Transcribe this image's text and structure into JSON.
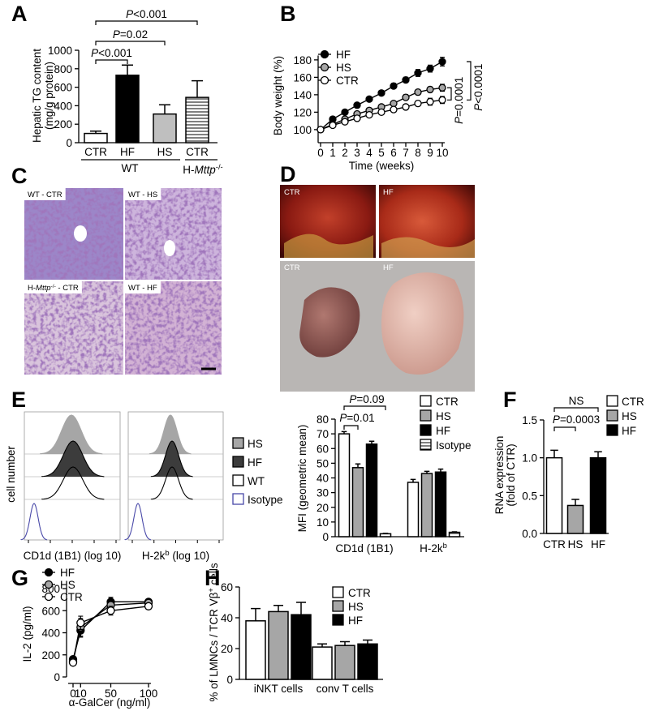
{
  "chart_data": [
    {
      "type": "bar",
      "panel": "A",
      "ylabel": [
        "Hepatic TG content",
        "(mg/g protein)"
      ],
      "categories": [
        "CTR",
        "HF",
        "HS",
        "CTR"
      ],
      "values": [
        100,
        730,
        310,
        490
      ],
      "errors": [
        25,
        110,
        100,
        180
      ],
      "colors": [
        "#ffffff",
        "#000000",
        "#bfbfbf",
        "#ffffff"
      ],
      "hatch": [
        false,
        false,
        false,
        true
      ],
      "ylim": [
        0,
        1000
      ],
      "yticks": [
        0,
        200,
        400,
        600,
        800,
        1000
      ],
      "groups": [
        "WT",
        [
          {
            "t": "H-"
          },
          {
            "t": "Mttp",
            "style": "italic"
          },
          {
            "t": "-/-",
            "style": "sup"
          }
        ]
      ],
      "annotations": [
        [
          {
            "t": "P",
            "style": "italic"
          },
          {
            "t": "<0.001"
          }
        ],
        [
          {
            "t": "P",
            "style": "italic"
          },
          {
            "t": "=0.02"
          }
        ],
        [
          {
            "t": "P",
            "style": "italic"
          },
          {
            "t": "<0.001"
          }
        ]
      ]
    },
    {
      "type": "line",
      "panel": "B",
      "ylabel": "Body weight (%)",
      "xlabel": "Time (weeks)",
      "x": [
        0,
        1,
        2,
        3,
        4,
        5,
        6,
        7,
        8,
        9,
        10
      ],
      "series": [
        {
          "name": "HF",
          "color": "#000000",
          "values": [
            100,
            112,
            120,
            128,
            135,
            142,
            150,
            157,
            165,
            170,
            178
          ],
          "errors": [
            0,
            1,
            1,
            1,
            1,
            2,
            3,
            3,
            4,
            4,
            5
          ]
        },
        {
          "name": "HS",
          "color": "#a6a6a6",
          "values": [
            100,
            106,
            112,
            118,
            122,
            126,
            130,
            137,
            143,
            146,
            148
          ],
          "errors": [
            0,
            1,
            1,
            1,
            1,
            2,
            2,
            3,
            3,
            3,
            4
          ]
        },
        {
          "name": "CTR",
          "color": "#ffffff",
          "values": [
            100,
            105,
            109,
            113,
            117,
            120,
            123,
            126,
            130,
            132,
            134
          ],
          "errors": [
            0,
            1,
            1,
            1,
            1,
            2,
            2,
            3,
            3,
            4,
            4
          ]
        }
      ],
      "xlim": [
        0,
        10
      ],
      "xticks": [
        0,
        1,
        2,
        3,
        4,
        5,
        6,
        7,
        8,
        9,
        10
      ],
      "ylim": [
        85,
        185
      ],
      "yticks": [
        100,
        120,
        140,
        160,
        180
      ],
      "annotations": [
        [
          {
            "t": "P",
            "style": "italic"
          },
          {
            "t": "=0.0001"
          }
        ],
        [
          {
            "t": "P",
            "style": "italic"
          },
          {
            "t": "<0.0001"
          }
        ]
      ]
    },
    {
      "type": "micrograph",
      "panel": "C",
      "labels": [
        "WT - CTR",
        "WT - HS",
        [
          {
            "t": "H-"
          },
          {
            "t": "Mttp",
            "style": "italic"
          },
          {
            "t": "-/-",
            "style": "sup"
          },
          {
            "t": " - CTR"
          }
        ],
        "WT - HF"
      ]
    },
    {
      "type": "photo",
      "panel": "D",
      "labels": [
        "CTR",
        "HF",
        "CTR",
        "HF"
      ]
    },
    {
      "type": "flow-histogram",
      "panel": "E",
      "ylabel": "cell number",
      "xlabels": [
        "CD1d (1B1) (log 10)",
        [
          {
            "t": "H-2k"
          },
          {
            "t": "b",
            "style": "sup"
          },
          {
            "t": " (log 10)"
          }
        ]
      ],
      "legend": [
        {
          "name": "HS",
          "color": "#a6a6a6",
          "filled": true
        },
        {
          "name": "HF",
          "color": "#3c3c3c",
          "filled": true
        },
        {
          "name": "WT",
          "color": "#000000",
          "filled": false
        },
        {
          "name": "Isotype",
          "color": "#4848a8",
          "filled": false
        }
      ]
    },
    {
      "type": "bar",
      "ylabel": "MFI (geometric mean)",
      "categories": [
        "CD1d (1B1)",
        [
          {
            "t": "H-2k"
          },
          {
            "t": "b",
            "style": "sup"
          }
        ]
      ],
      "series": [
        {
          "name": "CTR",
          "color": "#ffffff",
          "values": [
            70,
            37
          ],
          "errors": [
            1.5,
            2
          ]
        },
        {
          "name": "HS",
          "color": "#a6a6a6",
          "values": [
            47,
            43
          ],
          "errors": [
            2.5,
            1.5
          ]
        },
        {
          "name": "HF",
          "color": "#000000",
          "values": [
            63,
            44
          ],
          "errors": [
            2,
            2
          ]
        },
        {
          "name": "Isotype",
          "color": "#ffffff",
          "hatch": true,
          "values": [
            2,
            3
          ],
          "errors": [
            0.3,
            0.3
          ]
        }
      ],
      "ylim": [
        0,
        80
      ],
      "yticks": [
        0,
        10,
        20,
        30,
        40,
        50,
        60,
        70,
        80
      ],
      "annotations": [
        [
          {
            "t": "P",
            "style": "italic"
          },
          {
            "t": "=0.09"
          }
        ],
        [
          {
            "t": "P",
            "style": "italic"
          },
          {
            "t": "=0.01"
          }
        ]
      ]
    },
    {
      "type": "bar",
      "panel": "F",
      "ylabel": [
        "RNA expression",
        "(fold of CTR)"
      ],
      "categories": [
        "CTR",
        "HS",
        "HF"
      ],
      "values": [
        1,
        0.37,
        1
      ],
      "errors": [
        0.1,
        0.08,
        0.08
      ],
      "colors": [
        "#ffffff",
        "#a6a6a6",
        "#000000"
      ],
      "ylim": [
        0,
        1.5
      ],
      "yticks": [
        {
          "value": 0,
          "label": "0.0"
        },
        {
          "value": 0.5,
          "label": "0.5"
        },
        {
          "value": 1,
          "label": "1.0"
        },
        {
          "value": 1.5,
          "label": "1.5"
        }
      ],
      "annotations": [
        "NS",
        [
          {
            "t": "P",
            "style": "italic"
          },
          {
            "t": "=0.0003"
          }
        ]
      ]
    },
    {
      "type": "line",
      "panel": "G",
      "ylabel": "IL-2 (pg/ml)",
      "xlabel": "α-GalCer (ng/ml)",
      "x": [
        0,
        10,
        50,
        100
      ],
      "series": [
        {
          "name": "HF",
          "color": "#000000",
          "values": [
            160,
            420,
            680,
            680
          ],
          "errors": [
            20,
            60,
            40,
            20
          ]
        },
        {
          "name": "HS",
          "color": "#a6a6a6",
          "values": [
            140,
            450,
            650,
            670
          ],
          "errors": [
            20,
            80,
            40,
            20
          ]
        },
        {
          "name": "CTR",
          "color": "#ffffff",
          "values": [
            130,
            490,
            600,
            640
          ],
          "errors": [
            20,
            60,
            40,
            20
          ]
        }
      ],
      "xlim": [
        0,
        100
      ],
      "xticks": [
        0,
        10,
        50,
        100
      ],
      "ylim": [
        0,
        800
      ],
      "yticks": [
        0,
        200,
        400,
        600,
        800
      ]
    },
    {
      "type": "bar",
      "panel": "H",
      "ylabel": [
        {
          "t": "% of LMNCs / TCR Vβ"
        },
        {
          "t": "+",
          "style": "sup"
        },
        {
          "t": " cells"
        }
      ],
      "categories": [
        "iNKT cells",
        "conv T cells"
      ],
      "series": [
        {
          "name": "CTR",
          "color": "#ffffff",
          "values": [
            38,
            21
          ],
          "errors": [
            8,
            2
          ]
        },
        {
          "name": "HS",
          "color": "#a6a6a6",
          "values": [
            44,
            22
          ],
          "errors": [
            4,
            2.5
          ]
        },
        {
          "name": "HF",
          "color": "#000000",
          "values": [
            42,
            23
          ],
          "errors": [
            8,
            2.5
          ]
        }
      ],
      "ylim": [
        0,
        60
      ],
      "yticks": [
        0,
        20,
        40,
        60
      ]
    }
  ]
}
